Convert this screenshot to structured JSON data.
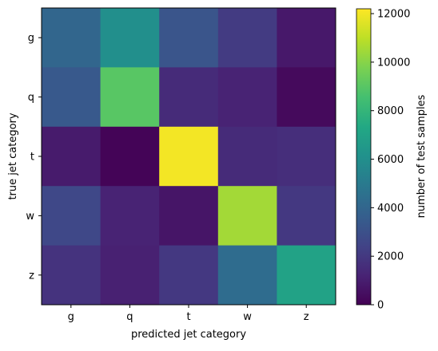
{
  "chart_data": {
    "type": "heatmap",
    "xlabel": "predicted jet category",
    "ylabel": "true jet category",
    "x_categories": [
      "g",
      "q",
      "t",
      "w",
      "z"
    ],
    "y_categories": [
      "g",
      "q",
      "t",
      "w",
      "z"
    ],
    "values": [
      [
        4000,
        6000,
        3200,
        2100,
        800
      ],
      [
        3400,
        9000,
        1500,
        1200,
        300
      ],
      [
        900,
        100,
        12000,
        1500,
        1600
      ],
      [
        2600,
        1200,
        700,
        10500,
        2000
      ],
      [
        1800,
        1100,
        2000,
        4300,
        7000
      ]
    ],
    "colorbar": {
      "label": "number of test samples",
      "range": [
        0,
        12200
      ],
      "ticks": [
        "0",
        "2000",
        "4000",
        "6000",
        "8000",
        "10000",
        "12000"
      ],
      "colormap": "viridis"
    }
  }
}
